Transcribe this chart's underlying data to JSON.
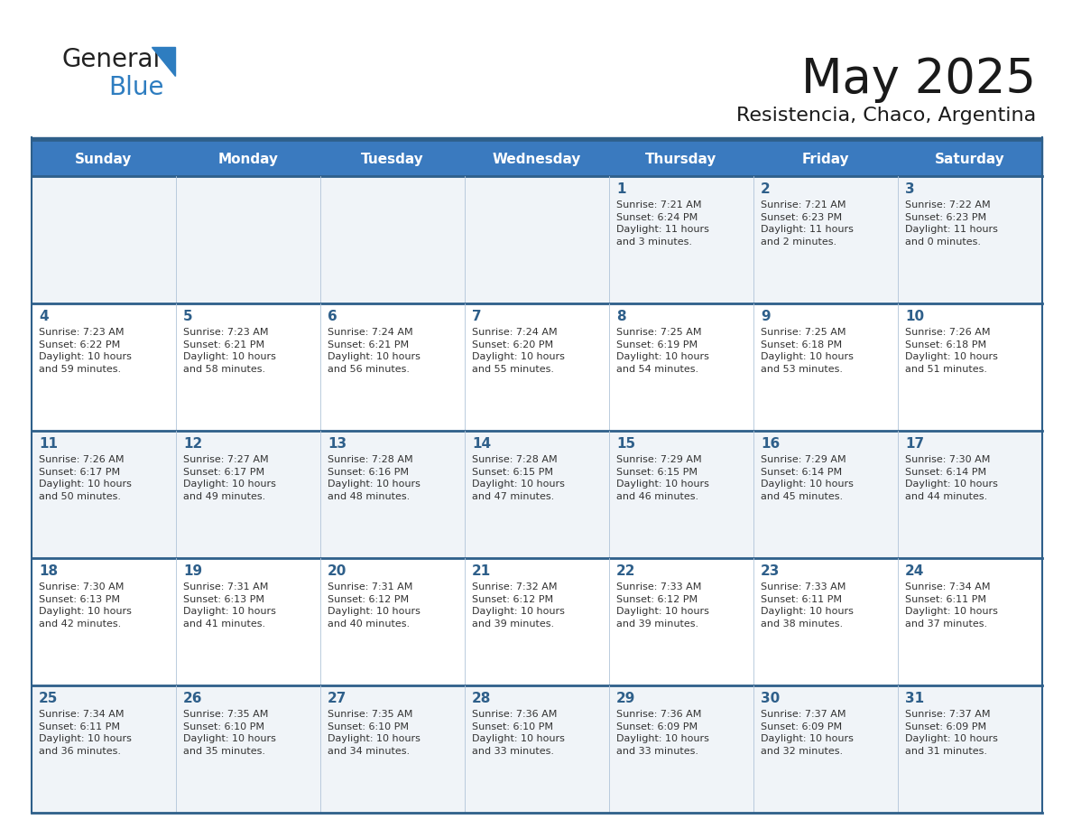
{
  "title": "May 2025",
  "subtitle": "Resistencia, Chaco, Argentina",
  "header_bg": "#3a7abf",
  "header_text": "#FFFFFF",
  "row_odd_bg": "#f0f4f8",
  "row_even_bg": "#FFFFFF",
  "border_color": "#2e5f8a",
  "cell_border_color": "#b0c4d8",
  "title_color": "#1a1a1a",
  "subtitle_color": "#1a1a1a",
  "cell_text_color": "#333333",
  "day_num_color": "#2e5f8a",
  "logo_general_color": "#222222",
  "logo_blue_color": "#2e7dc0",
  "day_names": [
    "Sunday",
    "Monday",
    "Tuesday",
    "Wednesday",
    "Thursday",
    "Friday",
    "Saturday"
  ],
  "weeks": [
    [
      {
        "day": 0,
        "text": ""
      },
      {
        "day": 0,
        "text": ""
      },
      {
        "day": 0,
        "text": ""
      },
      {
        "day": 0,
        "text": ""
      },
      {
        "day": 1,
        "text": "Sunrise: 7:21 AM\nSunset: 6:24 PM\nDaylight: 11 hours\nand 3 minutes."
      },
      {
        "day": 2,
        "text": "Sunrise: 7:21 AM\nSunset: 6:23 PM\nDaylight: 11 hours\nand 2 minutes."
      },
      {
        "day": 3,
        "text": "Sunrise: 7:22 AM\nSunset: 6:23 PM\nDaylight: 11 hours\nand 0 minutes."
      }
    ],
    [
      {
        "day": 4,
        "text": "Sunrise: 7:23 AM\nSunset: 6:22 PM\nDaylight: 10 hours\nand 59 minutes."
      },
      {
        "day": 5,
        "text": "Sunrise: 7:23 AM\nSunset: 6:21 PM\nDaylight: 10 hours\nand 58 minutes."
      },
      {
        "day": 6,
        "text": "Sunrise: 7:24 AM\nSunset: 6:21 PM\nDaylight: 10 hours\nand 56 minutes."
      },
      {
        "day": 7,
        "text": "Sunrise: 7:24 AM\nSunset: 6:20 PM\nDaylight: 10 hours\nand 55 minutes."
      },
      {
        "day": 8,
        "text": "Sunrise: 7:25 AM\nSunset: 6:19 PM\nDaylight: 10 hours\nand 54 minutes."
      },
      {
        "day": 9,
        "text": "Sunrise: 7:25 AM\nSunset: 6:18 PM\nDaylight: 10 hours\nand 53 minutes."
      },
      {
        "day": 10,
        "text": "Sunrise: 7:26 AM\nSunset: 6:18 PM\nDaylight: 10 hours\nand 51 minutes."
      }
    ],
    [
      {
        "day": 11,
        "text": "Sunrise: 7:26 AM\nSunset: 6:17 PM\nDaylight: 10 hours\nand 50 minutes."
      },
      {
        "day": 12,
        "text": "Sunrise: 7:27 AM\nSunset: 6:17 PM\nDaylight: 10 hours\nand 49 minutes."
      },
      {
        "day": 13,
        "text": "Sunrise: 7:28 AM\nSunset: 6:16 PM\nDaylight: 10 hours\nand 48 minutes."
      },
      {
        "day": 14,
        "text": "Sunrise: 7:28 AM\nSunset: 6:15 PM\nDaylight: 10 hours\nand 47 minutes."
      },
      {
        "day": 15,
        "text": "Sunrise: 7:29 AM\nSunset: 6:15 PM\nDaylight: 10 hours\nand 46 minutes."
      },
      {
        "day": 16,
        "text": "Sunrise: 7:29 AM\nSunset: 6:14 PM\nDaylight: 10 hours\nand 45 minutes."
      },
      {
        "day": 17,
        "text": "Sunrise: 7:30 AM\nSunset: 6:14 PM\nDaylight: 10 hours\nand 44 minutes."
      }
    ],
    [
      {
        "day": 18,
        "text": "Sunrise: 7:30 AM\nSunset: 6:13 PM\nDaylight: 10 hours\nand 42 minutes."
      },
      {
        "day": 19,
        "text": "Sunrise: 7:31 AM\nSunset: 6:13 PM\nDaylight: 10 hours\nand 41 minutes."
      },
      {
        "day": 20,
        "text": "Sunrise: 7:31 AM\nSunset: 6:12 PM\nDaylight: 10 hours\nand 40 minutes."
      },
      {
        "day": 21,
        "text": "Sunrise: 7:32 AM\nSunset: 6:12 PM\nDaylight: 10 hours\nand 39 minutes."
      },
      {
        "day": 22,
        "text": "Sunrise: 7:33 AM\nSunset: 6:12 PM\nDaylight: 10 hours\nand 39 minutes."
      },
      {
        "day": 23,
        "text": "Sunrise: 7:33 AM\nSunset: 6:11 PM\nDaylight: 10 hours\nand 38 minutes."
      },
      {
        "day": 24,
        "text": "Sunrise: 7:34 AM\nSunset: 6:11 PM\nDaylight: 10 hours\nand 37 minutes."
      }
    ],
    [
      {
        "day": 25,
        "text": "Sunrise: 7:34 AM\nSunset: 6:11 PM\nDaylight: 10 hours\nand 36 minutes."
      },
      {
        "day": 26,
        "text": "Sunrise: 7:35 AM\nSunset: 6:10 PM\nDaylight: 10 hours\nand 35 minutes."
      },
      {
        "day": 27,
        "text": "Sunrise: 7:35 AM\nSunset: 6:10 PM\nDaylight: 10 hours\nand 34 minutes."
      },
      {
        "day": 28,
        "text": "Sunrise: 7:36 AM\nSunset: 6:10 PM\nDaylight: 10 hours\nand 33 minutes."
      },
      {
        "day": 29,
        "text": "Sunrise: 7:36 AM\nSunset: 6:09 PM\nDaylight: 10 hours\nand 33 minutes."
      },
      {
        "day": 30,
        "text": "Sunrise: 7:37 AM\nSunset: 6:09 PM\nDaylight: 10 hours\nand 32 minutes."
      },
      {
        "day": 31,
        "text": "Sunrise: 7:37 AM\nSunset: 6:09 PM\nDaylight: 10 hours\nand 31 minutes."
      }
    ]
  ]
}
